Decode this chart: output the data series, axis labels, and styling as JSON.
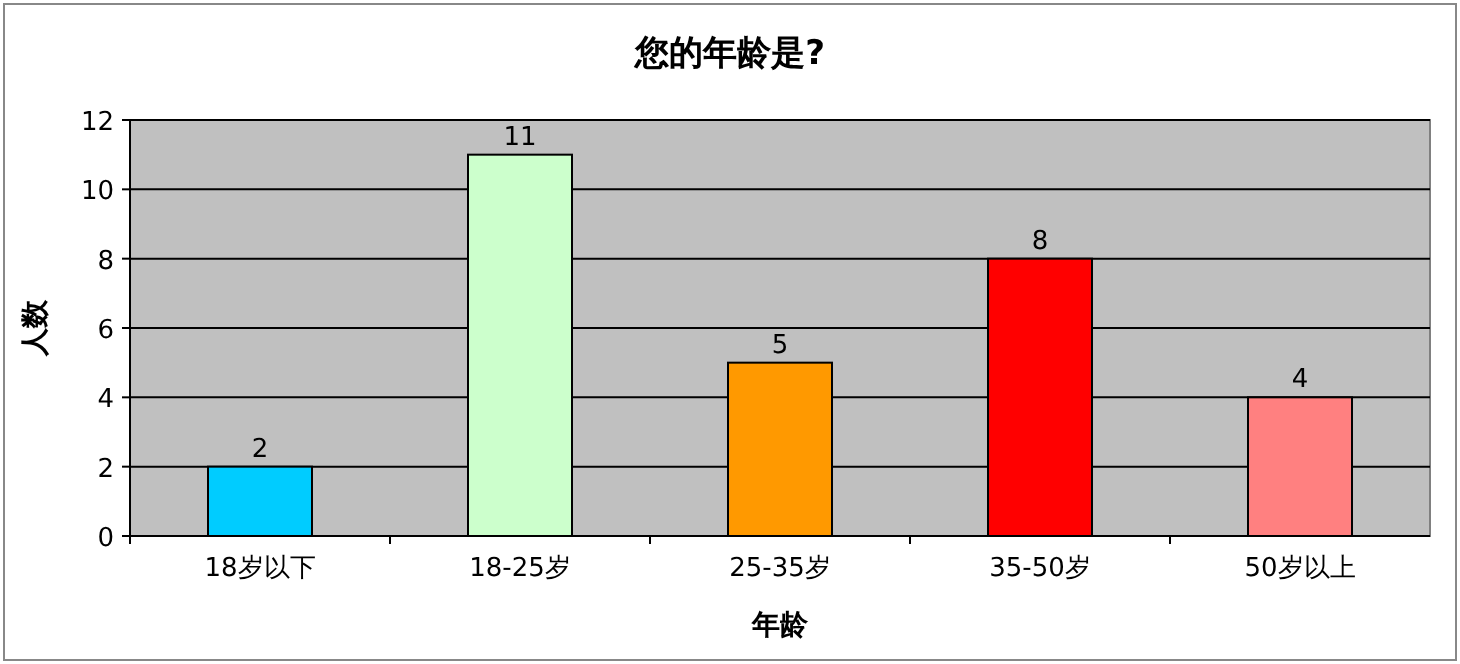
{
  "chart_data": {
    "type": "bar",
    "title": "您的年龄是?",
    "xlabel": "年龄",
    "ylabel": "人数",
    "categories": [
      "18岁以下",
      "18-25岁",
      "25-35岁",
      "35-50岁",
      "50岁以上"
    ],
    "values": [
      2,
      11,
      5,
      8,
      4
    ],
    "colors": [
      "#00ccff",
      "#ccffcc",
      "#ff9900",
      "#ff0000",
      "#ff8080"
    ],
    "ylim": [
      0,
      12
    ],
    "yticks": [
      0,
      2,
      4,
      6,
      8,
      10,
      12
    ],
    "grid": "y",
    "data_labels": true
  }
}
